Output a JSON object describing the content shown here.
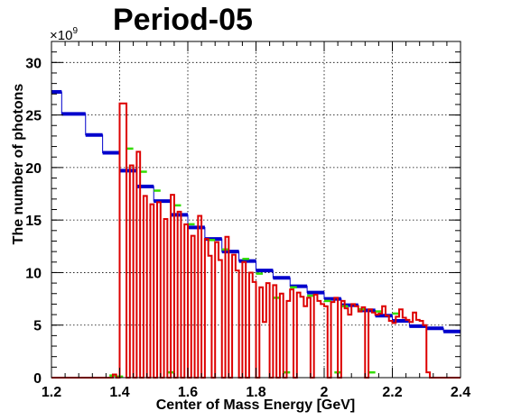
{
  "chart_data": {
    "type": "line",
    "title": "Period-05",
    "xlabel": "Center of Mass Energy [GeV]",
    "ylabel": "The number of photons",
    "y_exponent_label": "×10",
    "y_exponent": "9",
    "xlim": [
      1.2,
      2.4
    ],
    "ylim": [
      0,
      32
    ],
    "xticks": [
      "1.2",
      "1.4",
      "1.6",
      "1.8",
      "2",
      "2.2",
      "2.4"
    ],
    "yticks": [
      "0",
      "5",
      "10",
      "15",
      "20",
      "25",
      "30"
    ],
    "grid": true,
    "colors": {
      "blue": "#0000cc",
      "green": "#33dd00",
      "red": "#dd0000"
    },
    "series": [
      {
        "color": "blue",
        "style": "steps",
        "points": [
          [
            1.2,
            27.2
          ],
          [
            1.23,
            25.1
          ],
          [
            1.3,
            23.1
          ],
          [
            1.35,
            21.4
          ],
          [
            1.4,
            19.7
          ],
          [
            1.45,
            18.2
          ],
          [
            1.5,
            16.8
          ],
          [
            1.55,
            15.5
          ],
          [
            1.6,
            14.3
          ],
          [
            1.65,
            13.2
          ],
          [
            1.7,
            12.0
          ],
          [
            1.75,
            11.1
          ],
          [
            1.8,
            10.2
          ],
          [
            1.85,
            9.5
          ],
          [
            1.9,
            8.7
          ],
          [
            1.95,
            8.1
          ],
          [
            2.0,
            7.5
          ],
          [
            2.05,
            6.9
          ],
          [
            2.1,
            6.4
          ],
          [
            2.15,
            5.9
          ],
          [
            2.2,
            5.4
          ],
          [
            2.25,
            4.9
          ],
          [
            2.3,
            4.7
          ],
          [
            2.35,
            4.4
          ],
          [
            2.4,
            4.0
          ]
        ]
      },
      {
        "color": "green",
        "style": "segments",
        "points": [
          [
            1.38,
            0.2
          ],
          [
            1.4,
            0.1
          ],
          [
            1.43,
            21.8
          ],
          [
            1.47,
            19.6
          ],
          [
            1.51,
            17.8
          ],
          [
            1.55,
            0.5
          ],
          [
            1.57,
            16.4
          ],
          [
            1.61,
            14.6
          ],
          [
            1.67,
            13.1
          ],
          [
            1.71,
            12.2
          ],
          [
            1.77,
            11.3
          ],
          [
            1.81,
            9.9
          ],
          [
            1.86,
            7.6
          ],
          [
            1.89,
            0.5
          ],
          [
            1.91,
            8.6
          ],
          [
            1.96,
            7.8
          ],
          [
            2.01,
            7.3
          ],
          [
            2.04,
            0.5
          ],
          [
            2.06,
            6.8
          ],
          [
            2.11,
            6.5
          ],
          [
            2.14,
            0.5
          ],
          [
            2.16,
            6.3
          ],
          [
            2.21,
            6.1
          ]
        ]
      },
      {
        "color": "red",
        "style": "histogram",
        "points": [
          [
            1.2,
            0
          ],
          [
            1.22,
            0
          ],
          [
            1.24,
            0
          ],
          [
            1.26,
            0
          ],
          [
            1.28,
            0
          ],
          [
            1.3,
            0
          ],
          [
            1.32,
            0
          ],
          [
            1.34,
            0
          ],
          [
            1.36,
            0
          ],
          [
            1.38,
            0.3
          ],
          [
            1.39,
            0
          ],
          [
            1.4,
            26.1
          ],
          [
            1.41,
            26.1
          ],
          [
            1.42,
            0
          ],
          [
            1.43,
            20.2
          ],
          [
            1.44,
            0
          ],
          [
            1.45,
            21.5
          ],
          [
            1.46,
            0
          ],
          [
            1.47,
            17.3
          ],
          [
            1.48,
            0
          ],
          [
            1.49,
            16.5
          ],
          [
            1.5,
            0
          ],
          [
            1.51,
            16.7
          ],
          [
            1.52,
            0
          ],
          [
            1.53,
            15.1
          ],
          [
            1.54,
            0
          ],
          [
            1.55,
            17.4
          ],
          [
            1.56,
            0
          ],
          [
            1.57,
            15.8
          ],
          [
            1.58,
            0
          ],
          [
            1.59,
            14.6
          ],
          [
            1.6,
            0
          ],
          [
            1.61,
            13.5
          ],
          [
            1.62,
            0
          ],
          [
            1.63,
            15.4
          ],
          [
            1.64,
            0
          ],
          [
            1.65,
            13.2
          ],
          [
            1.66,
            11.6
          ],
          [
            1.67,
            0
          ],
          [
            1.68,
            12.9
          ],
          [
            1.69,
            11.2
          ],
          [
            1.7,
            0
          ],
          [
            1.71,
            13.4
          ],
          [
            1.72,
            0
          ],
          [
            1.73,
            11.7
          ],
          [
            1.74,
            10.2
          ],
          [
            1.75,
            0
          ],
          [
            1.76,
            11.0
          ],
          [
            1.77,
            0
          ],
          [
            1.78,
            10.0
          ],
          [
            1.79,
            9.1
          ],
          [
            1.8,
            0
          ],
          [
            1.81,
            8.6
          ],
          [
            1.82,
            5.3
          ],
          [
            1.83,
            9.0
          ],
          [
            1.84,
            0
          ],
          [
            1.85,
            8.8
          ],
          [
            1.86,
            0
          ],
          [
            1.87,
            8.0
          ],
          [
            1.88,
            0
          ],
          [
            1.89,
            7.3
          ],
          [
            1.9,
            8.4
          ],
          [
            1.91,
            0
          ],
          [
            1.92,
            8.1
          ],
          [
            1.93,
            7.7
          ],
          [
            1.94,
            6.8
          ],
          [
            1.95,
            7.6
          ],
          [
            1.96,
            0
          ],
          [
            1.97,
            7.9
          ],
          [
            1.98,
            7.3
          ],
          [
            1.99,
            7.0
          ],
          [
            2.0,
            6.8
          ],
          [
            2.01,
            0
          ],
          [
            2.02,
            7.2
          ],
          [
            2.03,
            7.6
          ],
          [
            2.04,
            0
          ],
          [
            2.05,
            7.3
          ],
          [
            2.06,
            6.6
          ],
          [
            2.07,
            6.0
          ],
          [
            2.08,
            7.0
          ],
          [
            2.09,
            6.8
          ],
          [
            2.1,
            6.3
          ],
          [
            2.11,
            6.7
          ],
          [
            2.12,
            0
          ],
          [
            2.13,
            6.5
          ],
          [
            2.14,
            6.2
          ],
          [
            2.15,
            6.0
          ],
          [
            2.16,
            6.1
          ],
          [
            2.17,
            6.8
          ],
          [
            2.18,
            5.9
          ],
          [
            2.19,
            5.4
          ],
          [
            2.2,
            5.2
          ],
          [
            2.21,
            5.8
          ],
          [
            2.22,
            6.5
          ],
          [
            2.23,
            5.7
          ],
          [
            2.24,
            5.5
          ],
          [
            2.25,
            5.3
          ],
          [
            2.26,
            6.2
          ],
          [
            2.27,
            5.5
          ],
          [
            2.28,
            5.4
          ],
          [
            2.29,
            5.0
          ],
          [
            2.3,
            0.5
          ],
          [
            2.31,
            0
          ],
          [
            2.33,
            0
          ],
          [
            2.35,
            0
          ],
          [
            2.37,
            0
          ],
          [
            2.39,
            0
          ]
        ]
      }
    ]
  }
}
